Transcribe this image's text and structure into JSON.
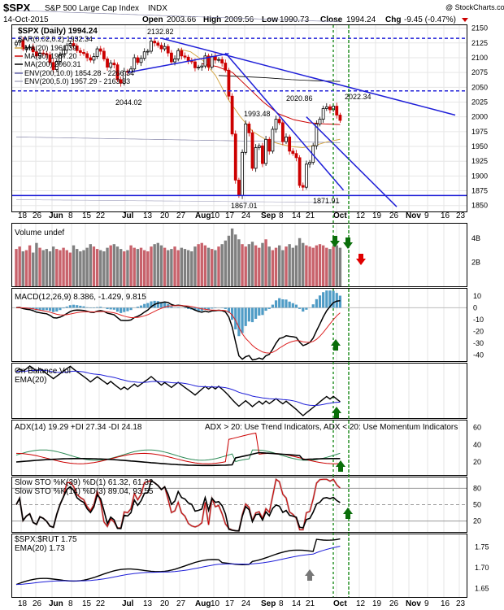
{
  "header": {
    "symbol": "$SPX",
    "name": "S&P 500 Large Cap Index",
    "exchange": "INDX",
    "date": "14-Oct-2015",
    "open_label": "Open",
    "open": "2003.66",
    "high_label": "High",
    "high": "2009.56",
    "low_label": "Low",
    "low": "1990.73",
    "close_label": "Close",
    "close": "1994.24",
    "chg_label": "Chg",
    "chg": "-9.45 (-0.47%)",
    "watermark": "@ StockCharts.com"
  },
  "colors": {
    "candle_up": "#000000",
    "candle_down": "#cc0000",
    "ma20": "#d4a84a",
    "ma50": "#cc0000",
    "ma200": "#000000",
    "env": "#8888aa",
    "trend": "#1f1fd8",
    "vol_up": "#c8626b",
    "vol_down": "#808080",
    "hist": "#4f9cc6",
    "arrow_green": "#0a6e0a",
    "arrow_red": "#e00000",
    "arrow_gray": "#777777"
  },
  "x_axis": {
    "labels": [
      "18",
      "26",
      "Jun",
      "8",
      "15",
      "22",
      "Jul",
      "13",
      "20",
      "27",
      "Aug",
      "10",
      "17",
      "24",
      "Sep",
      "8",
      "14",
      "21",
      "Oct",
      "12",
      "19",
      "26",
      "Nov",
      "9",
      "16",
      "23"
    ],
    "bold": [
      "Jun",
      "Jul",
      "Aug",
      "Sep",
      "Oct",
      "Nov"
    ]
  },
  "chart_data": [
    {
      "type": "line",
      "title": "$SPX (Daily) 1994.24",
      "legend": [
        {
          "label": "SAR(0.02,0.2) 1932.34",
          "icon": "dots"
        },
        {
          "label": "MA(20) 1961.39",
          "color": "#d4a84a"
        },
        {
          "label": "MA(50) 1987.20",
          "color": "#cc0000"
        },
        {
          "label": "MA(200) 2060.31",
          "color": "#000000"
        },
        {
          "label": "ENV(200,10.0) 1854.28 - 2266.34",
          "color": "#1a1a80"
        },
        {
          "label": "ENV(200,5.0) 1957.29 - 2163.33",
          "color": "#8888aa"
        }
      ],
      "series": [
        {
          "name": "SPX",
          "values": [
            2126,
            2129,
            2115,
            2117,
            2118,
            2110,
            2103,
            2108,
            2107,
            2105,
            2092,
            2080,
            2094,
            2105,
            2113,
            2121,
            2124,
            2120,
            2112,
            2109,
            2107,
            2100,
            2096,
            2102,
            2115,
            2111,
            2098,
            2084,
            2091,
            2088,
            2063,
            2057,
            2077,
            2076,
            2081,
            2100,
            2092,
            2099,
            2110,
            2111,
            2128,
            2125,
            2121,
            2115,
            2119,
            2108,
            2093,
            2098,
            2112,
            2103,
            2101,
            2095,
            2093,
            2083,
            2084,
            2086,
            2103,
            2084,
            2102,
            2096,
            2097,
            2091,
            2079,
            2035,
            1971,
            1893,
            1867,
            1940,
            1988,
            1973,
            1913,
            1948,
            1951,
            1921,
            1962,
            1942,
            1979,
            1996,
            1990,
            1958,
            1966,
            1942,
            1938,
            1931,
            1884,
            1881,
            1920,
            1923,
            1951,
            1988,
            1996,
            2014,
            2017,
            2012,
            2018,
            2003,
            1994
          ]
        },
        {
          "name": "MA(20)",
          "values": [
            2115,
            2110,
            2095,
            2070,
            2030,
            2000,
            1975,
            1962,
            1955,
            1950,
            1948,
            1952,
            1958,
            1962
          ]
        },
        {
          "name": "MA(50)",
          "values": [
            2090,
            2085,
            2075,
            2050,
            2025,
            2005,
            1995,
            1990,
            1988,
            1987
          ]
        },
        {
          "name": "MA(200)",
          "values": [
            2070,
            2068,
            2066,
            2063,
            2061,
            2060
          ]
        }
      ],
      "annotations": [
        "2132.82",
        "2044.02",
        "1993.48",
        "2020.86",
        "2022.34",
        "1867.01",
        "1871.91"
      ],
      "ylim": [
        1840,
        2155
      ],
      "y_ticks": [
        1850,
        1875,
        1900,
        1925,
        1950,
        1975,
        2000,
        2025,
        2050,
        2075,
        2100,
        2125,
        2150
      ]
    },
    {
      "type": "bar",
      "title": "Volume undef",
      "values": [
        3.1,
        3.3,
        2.9,
        3.0,
        3.4,
        2.8,
        3.6,
        3.2,
        3.0,
        3.1,
        2.9,
        3.3,
        3.1,
        3.0,
        3.2,
        3.0,
        2.8,
        3.4,
        3.1,
        2.9,
        3.0,
        3.2,
        3.5,
        3.3,
        3.1,
        3.0,
        2.9,
        3.2,
        3.4,
        3.5,
        3.3,
        3.1,
        2.9,
        3.0,
        3.4,
        3.2,
        3.1,
        3.2,
        3.0,
        2.9,
        3.3,
        3.5,
        3.6,
        3.4,
        3.2,
        3.0,
        3.1,
        3.3,
        3.0,
        3.2,
        3.1,
        3.0,
        2.9,
        3.3,
        3.5,
        3.6,
        3.4,
        3.2,
        3.1,
        3.0,
        3.3,
        3.5,
        3.8,
        4.2,
        4.8,
        4.3,
        3.9,
        3.5,
        3.3,
        3.5,
        3.7,
        3.4,
        3.2,
        3.6,
        3.9,
        3.3,
        3.0,
        3.2,
        3.4,
        3.0,
        3.3,
        3.5,
        3.2,
        3.4,
        4.0,
        3.6,
        3.4,
        3.3,
        3.2,
        3.4,
        3.5,
        3.4,
        3.2,
        3.1,
        3.3,
        3.4,
        3.2
      ],
      "y_ticks": [
        "2B",
        "4B"
      ]
    },
    {
      "type": "line",
      "title": "MACD(12,26,9) 8.386, -1.429, 9.815",
      "y_ticks": [
        10,
        0,
        -10,
        -20,
        -30,
        -40
      ]
    },
    {
      "type": "line",
      "title": "On Balance Vol",
      "legend": [
        {
          "label": "EMA(20)",
          "color": "#1f1fd8"
        }
      ]
    },
    {
      "type": "line",
      "title": "ADX(14) 19.29 +DI 27.34 -DI 24.18",
      "annotations": [
        "ADX > 20: Use Trend Indicators, ADX < 20: Use Momentum Indicators"
      ],
      "y_ticks": [
        20,
        40,
        60
      ]
    },
    {
      "type": "line",
      "title": "Slow STO %K(39) %D(1) 61.32, 61.32",
      "subtitle": "Slow STO %K(14) %D(3) 89.04, 93.55",
      "y_ticks": [
        20,
        50,
        80
      ]
    },
    {
      "type": "line",
      "title": "$SPX:$RUT 1.75",
      "legend": [
        {
          "label": "EMA(20) 1.73",
          "color": "#1f1fd8"
        }
      ],
      "y_ticks": [
        1.65,
        1.7,
        1.75
      ]
    }
  ]
}
